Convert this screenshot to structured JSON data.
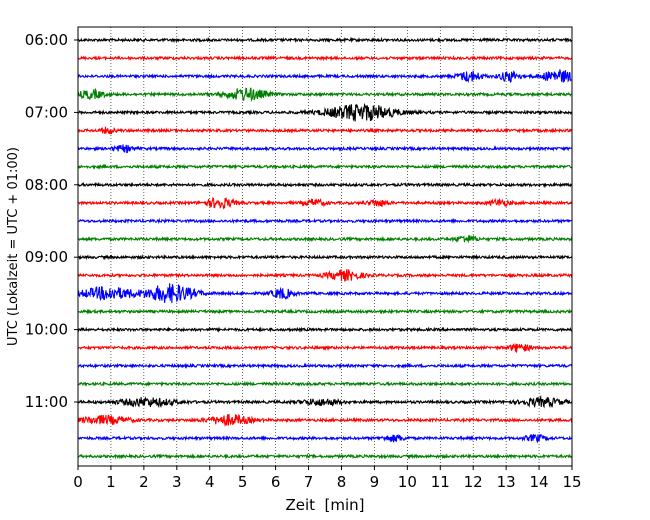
{
  "chart_data": {
    "type": "line",
    "xlabel": "Zeit  [min]",
    "ylabel": "UTC (Lokalzeit = UTC + 01:00)",
    "xlim": [
      0,
      15
    ],
    "x_ticks": [
      0,
      1,
      2,
      3,
      4,
      5,
      6,
      7,
      8,
      9,
      10,
      11,
      12,
      13,
      14,
      15
    ],
    "x_grid": "dotted",
    "y_ticks": [
      "06:00",
      "07:00",
      "08:00",
      "09:00",
      "10:00",
      "11:00"
    ],
    "trace_interval_min": 15,
    "colors": [
      "#000000",
      "#ff0000",
      "#0000ff",
      "#008000"
    ],
    "traces": [
      {
        "start": "06:00",
        "color": "#000000",
        "events": []
      },
      {
        "start": "06:15",
        "color": "#ff0000",
        "events": []
      },
      {
        "start": "06:30",
        "color": "#0000ff",
        "events": [
          [
            11.9,
            0.35,
            5
          ],
          [
            13.1,
            0.3,
            5
          ],
          [
            14.6,
            0.5,
            6
          ]
        ]
      },
      {
        "start": "06:45",
        "color": "#008000",
        "events": [
          [
            0.4,
            0.4,
            4
          ],
          [
            5.1,
            0.6,
            6
          ]
        ]
      },
      {
        "start": "07:00",
        "color": "#000000",
        "events": [
          [
            8.6,
            1.0,
            8
          ]
        ]
      },
      {
        "start": "07:15",
        "color": "#ff0000",
        "events": [
          [
            0.9,
            0.2,
            3
          ]
        ]
      },
      {
        "start": "07:30",
        "color": "#0000ff",
        "events": [
          [
            1.4,
            0.3,
            3
          ]
        ]
      },
      {
        "start": "07:45",
        "color": "#008000",
        "events": []
      },
      {
        "start": "08:00",
        "color": "#000000",
        "events": []
      },
      {
        "start": "08:15",
        "color": "#ff0000",
        "events": [
          [
            4.3,
            0.4,
            5
          ],
          [
            7.2,
            0.3,
            3
          ],
          [
            9.1,
            0.3,
            3
          ],
          [
            12.8,
            0.3,
            3
          ]
        ]
      },
      {
        "start": "08:30",
        "color": "#0000ff",
        "events": []
      },
      {
        "start": "08:45",
        "color": "#008000",
        "events": [
          [
            11.8,
            0.3,
            3
          ]
        ]
      },
      {
        "start": "09:00",
        "color": "#000000",
        "events": []
      },
      {
        "start": "09:15",
        "color": "#ff0000",
        "events": [
          [
            8.1,
            0.5,
            5
          ]
        ]
      },
      {
        "start": "09:30",
        "color": "#0000ff",
        "events": [
          [
            0.9,
            0.8,
            6
          ],
          [
            2.8,
            0.7,
            9
          ],
          [
            6.2,
            0.3,
            5
          ]
        ]
      },
      {
        "start": "09:45",
        "color": "#008000",
        "events": []
      },
      {
        "start": "10:00",
        "color": "#000000",
        "events": []
      },
      {
        "start": "10:15",
        "color": "#ff0000",
        "events": [
          [
            13.4,
            0.3,
            4
          ]
        ]
      },
      {
        "start": "10:30",
        "color": "#0000ff",
        "events": []
      },
      {
        "start": "10:45",
        "color": "#008000",
        "events": []
      },
      {
        "start": "11:00",
        "color": "#000000",
        "events": [
          [
            2.1,
            0.8,
            4
          ],
          [
            7.4,
            0.6,
            3
          ],
          [
            14.1,
            0.6,
            4
          ]
        ]
      },
      {
        "start": "11:15",
        "color": "#ff0000",
        "events": [
          [
            0.8,
            0.7,
            4
          ],
          [
            4.6,
            0.6,
            5
          ]
        ]
      },
      {
        "start": "11:30",
        "color": "#0000ff",
        "events": [
          [
            9.6,
            0.3,
            3
          ],
          [
            13.9,
            0.3,
            3
          ]
        ]
      },
      {
        "start": "11:45",
        "color": "#008000",
        "events": []
      }
    ]
  }
}
